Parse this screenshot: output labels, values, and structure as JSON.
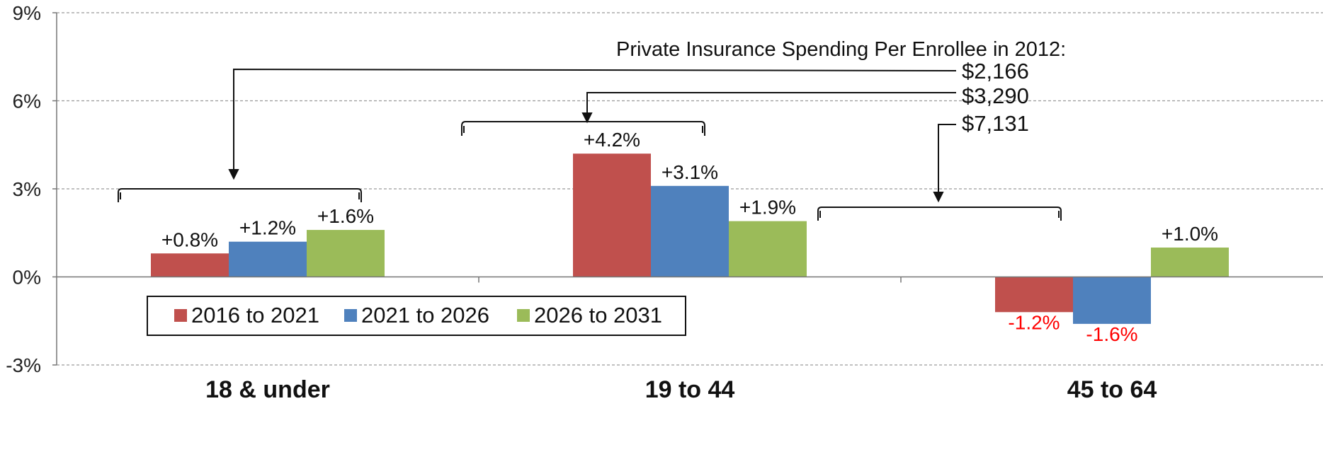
{
  "chart_data": {
    "type": "bar",
    "categories": [
      "18 & under",
      "19 to 44",
      "45 to 64"
    ],
    "series": [
      {
        "name": "2016 to 2021",
        "color": "#c0504d",
        "values": [
          0.8,
          4.2,
          -1.2
        ],
        "labels": [
          "+0.8%",
          "+4.2%",
          "-1.2%"
        ]
      },
      {
        "name": "2021 to 2026",
        "color": "#4f81bd",
        "values": [
          1.2,
          3.1,
          -1.6
        ],
        "labels": [
          "+1.2%",
          "+3.1%",
          "-1.6%"
        ]
      },
      {
        "name": "2026 to 2031",
        "color": "#9bbb59",
        "values": [
          1.6,
          1.9,
          1.0
        ],
        "labels": [
          "+1.6%",
          "+1.9%",
          "+1.0%"
        ]
      }
    ],
    "ylim": [
      -3,
      9
    ],
    "yticks": [
      -3,
      0,
      3,
      6,
      9
    ],
    "ytick_labels": [
      "-3%",
      "0%",
      "3%",
      "6%",
      "9%"
    ],
    "grid": true,
    "legend_position": "bottom-left",
    "negative_label_color": "#ff0000",
    "annotation": {
      "title": "Private Insurance Spending Per Enrollee in 2012:",
      "amounts": [
        "$2,166",
        "$3,290",
        "$7,131"
      ]
    }
  }
}
